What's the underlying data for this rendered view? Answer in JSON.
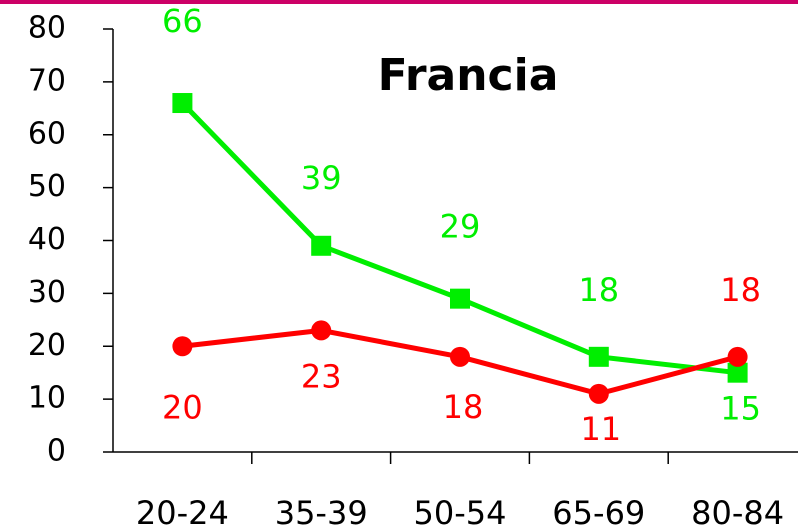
{
  "chart_data": {
    "type": "line",
    "title": "Francia",
    "categories": [
      "20-24",
      "35-39",
      "50-54",
      "65-69",
      "80-84"
    ],
    "series": [
      {
        "color": "#00ee00",
        "marker": "square",
        "values": [
          66,
          39,
          29,
          18,
          15
        ]
      },
      {
        "color": "#ff0000",
        "marker": "circle",
        "values": [
          20,
          23,
          18,
          11,
          18
        ]
      }
    ],
    "ylim": [
      0,
      80
    ],
    "yticks": [
      0,
      10,
      20,
      30,
      40,
      50,
      60,
      70,
      80
    ]
  }
}
